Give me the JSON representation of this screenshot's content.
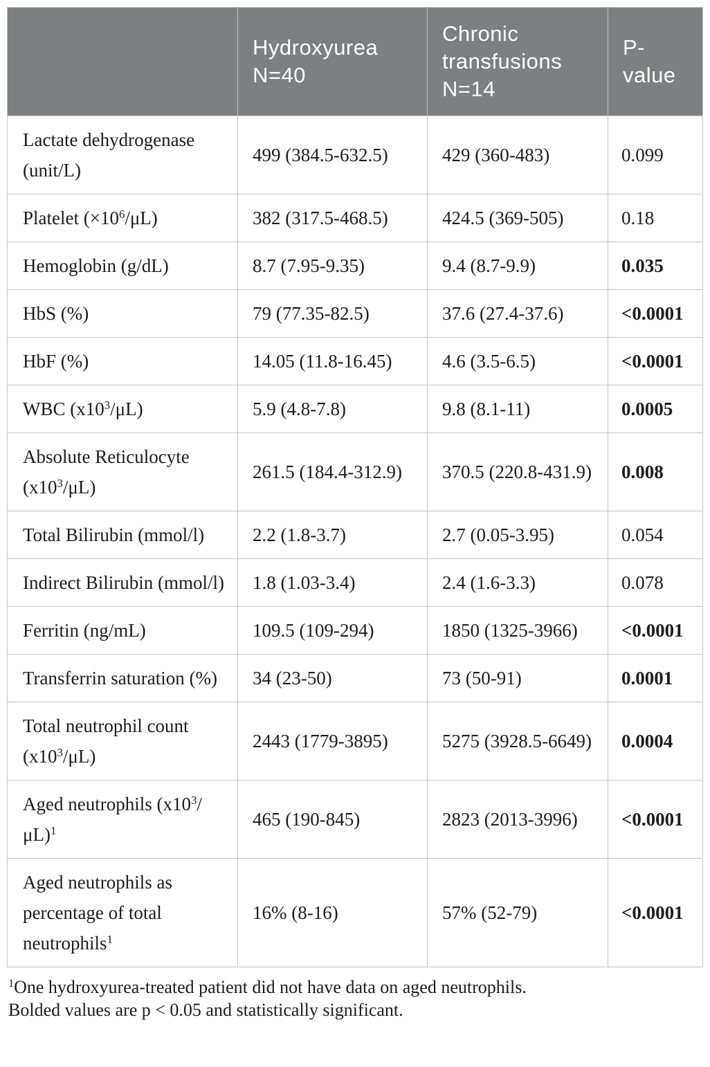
{
  "table": {
    "header": {
      "columns": [
        "",
        "Hydroxyurea\nN=40",
        "Chronic\ntransfusions\nN=14",
        "P-\nvalue"
      ]
    },
    "rows": [
      {
        "label_segments": [
          [
            "t",
            "Lactate dehydrogenase (unit/L)"
          ]
        ],
        "hydroxyurea": "499 (384.5-632.5)",
        "chronic_transfusions": "429 (360-483)",
        "p_value": "0.099",
        "significant": false
      },
      {
        "label_segments": [
          [
            "t",
            "Platelet (×10"
          ],
          [
            "s",
            "6"
          ],
          [
            "t",
            "/μL)"
          ]
        ],
        "hydroxyurea": "382 (317.5-468.5)",
        "chronic_transfusions": "424.5 (369-505)",
        "p_value": "0.18",
        "significant": false
      },
      {
        "label_segments": [
          [
            "t",
            "Hemoglobin (g/dL)"
          ]
        ],
        "hydroxyurea": "8.7 (7.95-9.35)",
        "chronic_transfusions": "9.4 (8.7-9.9)",
        "p_value": "0.035",
        "significant": true
      },
      {
        "label_segments": [
          [
            "t",
            "HbS (%)"
          ]
        ],
        "hydroxyurea": "79 (77.35-82.5)",
        "chronic_transfusions": "37.6 (27.4-37.6)",
        "p_value": "<0.0001",
        "significant": true
      },
      {
        "label_segments": [
          [
            "t",
            "HbF (%)"
          ]
        ],
        "hydroxyurea": "14.05 (11.8-16.45)",
        "chronic_transfusions": "4.6 (3.5-6.5)",
        "p_value": "<0.0001",
        "significant": true
      },
      {
        "label_segments": [
          [
            "t",
            "WBC (x10"
          ],
          [
            "s",
            "3"
          ],
          [
            "t",
            "/μL)"
          ]
        ],
        "hydroxyurea": "5.9 (4.8-7.8)",
        "chronic_transfusions": "9.8 (8.1-11)",
        "p_value": "0.0005",
        "significant": true
      },
      {
        "label_segments": [
          [
            "t",
            "Absolute Reticulocyte (x10"
          ],
          [
            "s",
            "3"
          ],
          [
            "t",
            "/μL)"
          ]
        ],
        "hydroxyurea": "261.5 (184.4-312.9)",
        "chronic_transfusions": "370.5 (220.8-431.9)",
        "p_value": "0.008",
        "significant": true
      },
      {
        "label_segments": [
          [
            "t",
            "Total Bilirubin (mmol/l)"
          ]
        ],
        "hydroxyurea": "2.2 (1.8-3.7)",
        "chronic_transfusions": "2.7 (0.05-3.95)",
        "p_value": "0.054",
        "significant": false
      },
      {
        "label_segments": [
          [
            "t",
            "Indirect Bilirubin (mmol/l)"
          ]
        ],
        "hydroxyurea": "1.8 (1.03-3.4)",
        "chronic_transfusions": "2.4 (1.6-3.3)",
        "p_value": "0.078",
        "significant": false
      },
      {
        "label_segments": [
          [
            "t",
            "Ferritin (ng/mL)"
          ]
        ],
        "hydroxyurea": "109.5 (109-294)",
        "chronic_transfusions": "1850 (1325-3966)",
        "p_value": "<0.0001",
        "significant": true
      },
      {
        "label_segments": [
          [
            "t",
            "Transferrin saturation (%)"
          ]
        ],
        "hydroxyurea": "34 (23-50)",
        "chronic_transfusions": "73 (50-91)",
        "p_value": "0.0001",
        "significant": true
      },
      {
        "label_segments": [
          [
            "t",
            "Total neutrophil count (x10"
          ],
          [
            "s",
            "3"
          ],
          [
            "t",
            "/μL)"
          ]
        ],
        "hydroxyurea": "2443 (1779-3895)",
        "chronic_transfusions": "5275 (3928.5-6649)",
        "p_value": "0.0004",
        "significant": true
      },
      {
        "label_segments": [
          [
            "t",
            "Aged neutrophils (x10"
          ],
          [
            "s",
            "3"
          ],
          [
            "t",
            "/μL)"
          ],
          [
            "s",
            "1"
          ]
        ],
        "hydroxyurea": "465 (190-845)",
        "chronic_transfusions": "2823 (2013-3996)",
        "p_value": "<0.0001",
        "significant": true
      },
      {
        "label_segments": [
          [
            "t",
            "Aged neutrophils as percentage of total neutrophils"
          ],
          [
            "s",
            "1"
          ]
        ],
        "hydroxyurea": "16% (8-16)",
        "chronic_transfusions": "57% (52-79)",
        "p_value": "<0.0001",
        "significant": true
      }
    ]
  },
  "footnotes": [
    {
      "sup": "1",
      "text": "One hydroxyurea-treated patient did not have data on aged neutrophils."
    },
    {
      "sup": "",
      "text": "Bolded values are p < 0.05 and statistically significant."
    }
  ],
  "colors": {
    "header_bg": "#7d8080",
    "header_text": "#ffffff",
    "body_text": "#1c1c1c",
    "border": "#c6c9c9"
  }
}
